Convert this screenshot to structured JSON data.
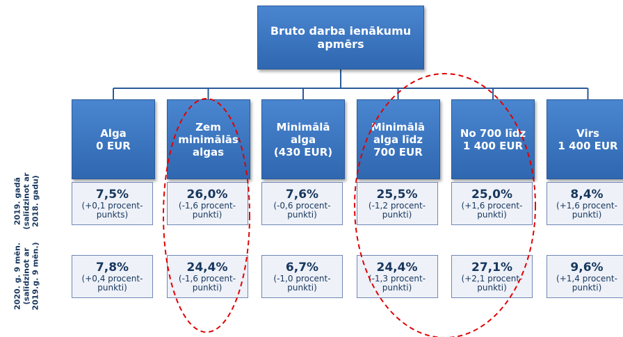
{
  "title": [
    "Bruto darba ienākumu",
    "apmērs"
  ],
  "categories": [
    [
      "Alga",
      "0 EUR"
    ],
    [
      "Zem",
      "minimālās",
      "algas"
    ],
    [
      "Minimālā",
      "alga",
      "(430 EUR)"
    ],
    [
      "Minimālā",
      "alga līdz",
      "700 EUR"
    ],
    [
      "No 700 līdz",
      "1 400 EUR"
    ],
    [
      "Virs",
      "1 400 EUR"
    ]
  ],
  "rows": [
    {
      "label": [
        "2019. gadā",
        "(salīdzinot ar",
        "2018. gadu)"
      ],
      "cells": [
        {
          "value": "7,5%",
          "change": [
            "(+0,1 procent-",
            "punkts)"
          ]
        },
        {
          "value": "26,0%",
          "change": [
            "(-1,6 procent-",
            "punkti)"
          ]
        },
        {
          "value": "7,6%",
          "change": [
            "(-0,6 procent-",
            "punkti)"
          ]
        },
        {
          "value": "25,5%",
          "change": [
            "(-1,2 procent-",
            "punkti)"
          ]
        },
        {
          "value": "25,0%",
          "change": [
            "(+1,6 procent-",
            "punkti)"
          ]
        },
        {
          "value": "8,4%",
          "change": [
            "(+1,6 procent-",
            "punkti)"
          ]
        }
      ]
    },
    {
      "label": [
        "2020. g. 9 mēn.",
        "(salīdzinot ar",
        "2019.g. 9 mēn.)"
      ],
      "cells": [
        {
          "value": "7,8%",
          "change": [
            "(+0,4 procent-",
            "punkti)"
          ]
        },
        {
          "value": "24,4%",
          "change": [
            "(-1,6 procent-",
            "punkti)"
          ]
        },
        {
          "value": "6,7%",
          "change": [
            "(-1,0 procent-",
            "punkti)"
          ]
        },
        {
          "value": "24,4%",
          "change": [
            "(-1,3 procent-",
            "punkti)"
          ]
        },
        {
          "value": "27,1%",
          "change": [
            "(+2,1 procent-",
            "punkti)"
          ]
        },
        {
          "value": "9,6%",
          "change": [
            "(+1,4 procent-",
            "punkti)"
          ]
        }
      ]
    }
  ]
}
